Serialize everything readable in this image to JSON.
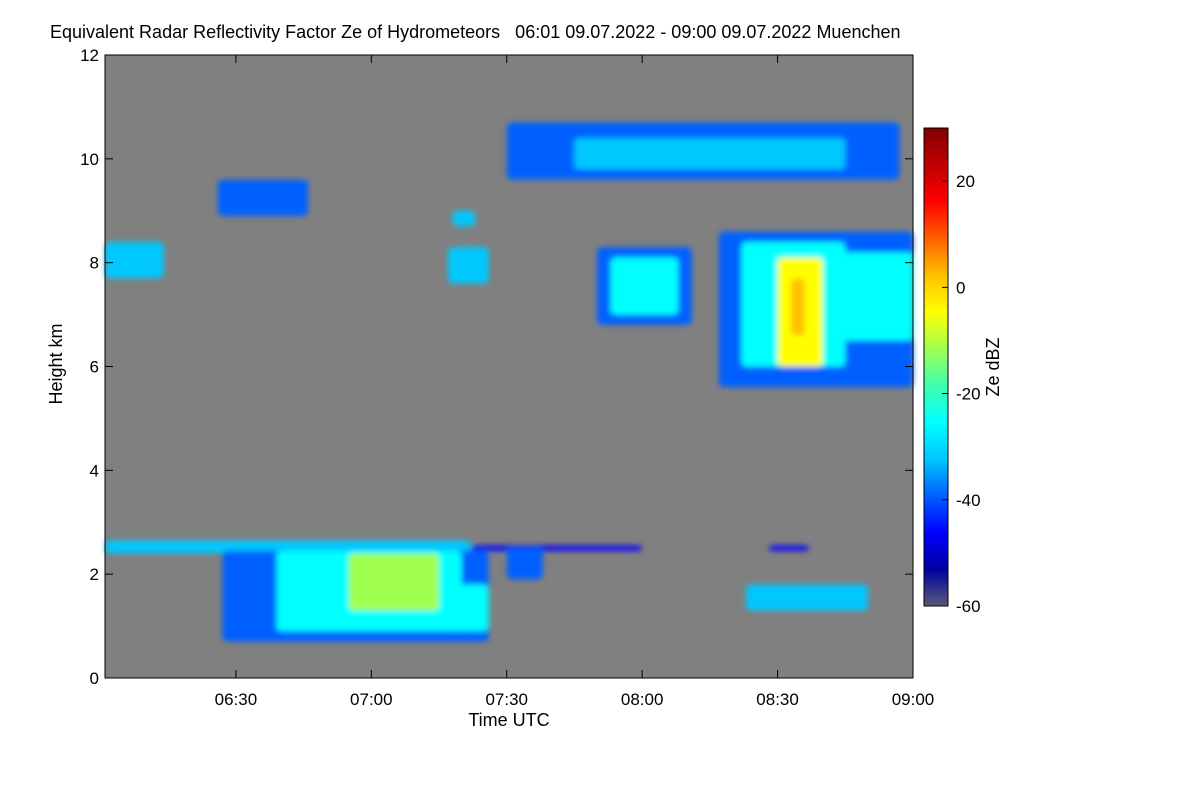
{
  "chart_data": {
    "type": "heatmap",
    "title": "Equivalent Radar Reflectivity Factor Ze of Hydrometeors   06:01 09.07.2022 - 09:00 09.07.2022 Muenchen",
    "xlabel": "Time UTC",
    "ylabel": "Height km",
    "colorbar_label": "Ze dBZ",
    "x_range_minutes_utc": [
      361,
      540
    ],
    "y_range_km": [
      0,
      12
    ],
    "x_ticks": [
      {
        "value": 390,
        "label": "06:30"
      },
      {
        "value": 420,
        "label": "07:00"
      },
      {
        "value": 450,
        "label": "07:30"
      },
      {
        "value": 480,
        "label": "08:00"
      },
      {
        "value": 510,
        "label": "08:30"
      },
      {
        "value": 540,
        "label": "09:00"
      }
    ],
    "y_ticks": [
      0,
      2,
      4,
      6,
      8,
      10,
      12
    ],
    "colorbar_range_dbz": [
      -60,
      30
    ],
    "colorbar_ticks": [
      20,
      0,
      -20,
      -40,
      -60
    ],
    "colormap": [
      "#5a5a78",
      "#0000a0",
      "#0000ff",
      "#0060ff",
      "#00c8ff",
      "#00ffff",
      "#40ffb0",
      "#a0ff50",
      "#ffff00",
      "#ffc000",
      "#ff6000",
      "#ff0000",
      "#c00000",
      "#800000"
    ],
    "background_color": "#808080",
    "echo_regions": [
      {
        "name": "low-level-cloud-base-layer",
        "t_start": 361,
        "t_end": 442,
        "h_bottom": 2.4,
        "h_top": 2.65,
        "dbz": -30
      },
      {
        "name": "low-level-melting-layer-edge",
        "t_start": 442,
        "t_end": 480,
        "h_bottom": 2.45,
        "h_top": 2.55,
        "dbz": -45
      },
      {
        "name": "low-level-virga-fringe",
        "t_start": 387,
        "t_end": 446,
        "h_bottom": 0.7,
        "h_top": 2.45,
        "dbz": -42
      },
      {
        "name": "low-level-virga-main",
        "t_start": 399,
        "t_end": 440,
        "h_bottom": 0.9,
        "h_top": 2.45,
        "dbz": -25
      },
      {
        "name": "low-level-virga-core",
        "t_start": 415,
        "t_end": 435,
        "h_bottom": 1.3,
        "h_top": 2.4,
        "dbz": -10
      },
      {
        "name": "low-level-trailing-cell",
        "t_start": 437,
        "t_end": 446,
        "h_bottom": 0.9,
        "h_top": 1.8,
        "dbz": -25
      },
      {
        "name": "low-level-fragment-0745",
        "t_start": 450,
        "t_end": 458,
        "h_bottom": 1.9,
        "h_top": 2.5,
        "dbz": -40
      },
      {
        "name": "mid-level-cell-0800-fringe",
        "t_start": 470,
        "t_end": 491,
        "h_bottom": 6.8,
        "h_top": 8.3,
        "dbz": -38
      },
      {
        "name": "mid-level-cell-0800-core",
        "t_start": 473,
        "t_end": 488,
        "h_bottom": 7.0,
        "h_top": 8.1,
        "dbz": -22
      },
      {
        "name": "mid-level-cell-0830-fringe",
        "t_start": 497,
        "t_end": 540,
        "h_bottom": 5.6,
        "h_top": 8.6,
        "dbz": -38
      },
      {
        "name": "mid-level-cell-0830-main",
        "t_start": 502,
        "t_end": 525,
        "h_bottom": 6.0,
        "h_top": 8.4,
        "dbz": -22
      },
      {
        "name": "mid-level-cell-0830-core",
        "t_start": 510,
        "t_end": 520,
        "h_bottom": 6.0,
        "h_top": 8.1,
        "dbz": -2
      },
      {
        "name": "mid-level-cell-0830-peak",
        "t_start": 513,
        "t_end": 516,
        "h_bottom": 6.6,
        "h_top": 7.7,
        "dbz": 5
      },
      {
        "name": "mid-level-cell-0845",
        "t_start": 522,
        "t_end": 540,
        "h_bottom": 6.5,
        "h_top": 8.2,
        "dbz": -28
      },
      {
        "name": "cirrus-upper-band-fringe",
        "t_start": 450,
        "t_end": 537,
        "h_bottom": 9.6,
        "h_top": 10.7,
        "dbz": -40
      },
      {
        "name": "cirrus-upper-band-core",
        "t_start": 465,
        "t_end": 525,
        "h_bottom": 9.8,
        "h_top": 10.4,
        "dbz": -30
      },
      {
        "name": "cirrus-0630-patch",
        "t_start": 386,
        "t_end": 406,
        "h_bottom": 8.9,
        "h_top": 9.6,
        "dbz": -38
      },
      {
        "name": "cirrus-0610-patch",
        "t_start": 361,
        "t_end": 374,
        "h_bottom": 7.7,
        "h_top": 8.4,
        "dbz": -30
      },
      {
        "name": "patch-0725-8km",
        "t_start": 437,
        "t_end": 446,
        "h_bottom": 7.6,
        "h_top": 8.3,
        "dbz": -32
      },
      {
        "name": "patch-0725-9km",
        "t_start": 438,
        "t_end": 443,
        "h_bottom": 8.7,
        "h_top": 9.0,
        "dbz": -32
      },
      {
        "name": "speckle-0835-low",
        "t_start": 503,
        "t_end": 530,
        "h_bottom": 1.3,
        "h_top": 1.8,
        "dbz": -30
      },
      {
        "name": "stray-0830-2-5km",
        "t_start": 508,
        "t_end": 517,
        "h_bottom": 2.45,
        "h_top": 2.55,
        "dbz": -45
      }
    ]
  }
}
